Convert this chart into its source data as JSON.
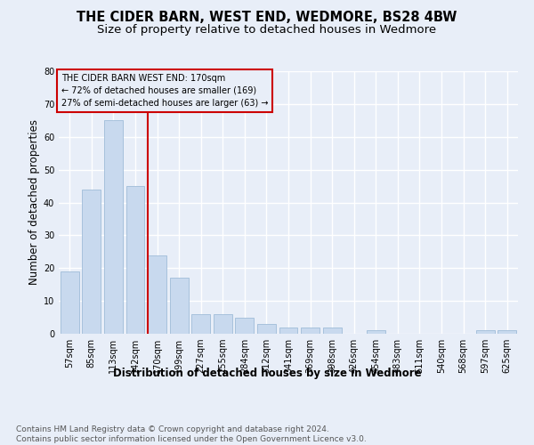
{
  "title": "THE CIDER BARN, WEST END, WEDMORE, BS28 4BW",
  "subtitle": "Size of property relative to detached houses in Wedmore",
  "xlabel": "Distribution of detached houses by size in Wedmore",
  "ylabel": "Number of detached properties",
  "categories": [
    "57sqm",
    "85sqm",
    "113sqm",
    "142sqm",
    "170sqm",
    "199sqm",
    "227sqm",
    "255sqm",
    "284sqm",
    "312sqm",
    "341sqm",
    "369sqm",
    "398sqm",
    "426sqm",
    "454sqm",
    "483sqm",
    "511sqm",
    "540sqm",
    "568sqm",
    "597sqm",
    "625sqm"
  ],
  "values": [
    19,
    44,
    65,
    45,
    24,
    17,
    6,
    6,
    5,
    3,
    2,
    2,
    2,
    0,
    1,
    0,
    0,
    0,
    0,
    1,
    1
  ],
  "bar_color": "#c8d9ee",
  "bar_edgecolor": "#a0bcd8",
  "highlight_index": 4,
  "highlight_color": "#cc0000",
  "annotation_text": "THE CIDER BARN WEST END: 170sqm\n← 72% of detached houses are smaller (169)\n27% of semi-detached houses are larger (63) →",
  "annotation_box_edgecolor": "#cc0000",
  "ylim": [
    0,
    80
  ],
  "yticks": [
    0,
    10,
    20,
    30,
    40,
    50,
    60,
    70,
    80
  ],
  "footer": "Contains HM Land Registry data © Crown copyright and database right 2024.\nContains public sector information licensed under the Open Government Licence v3.0.",
  "background_color": "#e8eef8",
  "grid_color": "#ffffff",
  "title_fontsize": 10.5,
  "subtitle_fontsize": 9.5,
  "axis_label_fontsize": 8.5,
  "tick_fontsize": 7,
  "annotation_fontsize": 7,
  "footer_fontsize": 6.5
}
